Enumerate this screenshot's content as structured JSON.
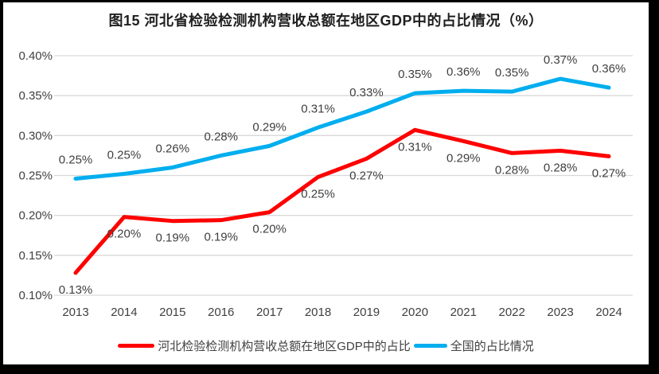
{
  "colors": {
    "frame": "#000000",
    "background": "#FFFFFF",
    "grid": "#D9D9D9",
    "axis_text": "#404040",
    "label_text": "#3F3F3F",
    "title_text": "#1F1F1F",
    "hebei_red": "#FE0000",
    "national_blue": "#00AEEF"
  },
  "chart_data": {
    "type": "line",
    "title": "图15 河北省检验检测机构营收总额在地区GDP中的占比情况（%）",
    "xlabel": "",
    "ylabel": "",
    "categories": [
      "2013",
      "2014",
      "2015",
      "2016",
      "2017",
      "2018",
      "2019",
      "2020",
      "2021",
      "2022",
      "2023",
      "2024"
    ],
    "series": [
      {
        "id": "hebei",
        "name": "河北检验检测机构营收总额在地区GDP中的占比",
        "color": "#FE0000",
        "values": [
          0.128,
          0.198,
          0.193,
          0.194,
          0.204,
          0.248,
          0.271,
          0.307,
          0.293,
          0.278,
          0.281,
          0.274
        ],
        "labels": [
          "0.13%",
          "0.20%",
          "0.19%",
          "0.19%",
          "0.20%",
          "0.25%",
          "0.27%",
          "0.31%",
          "0.29%",
          "0.28%",
          "0.28%",
          "0.27%"
        ],
        "label_position": "below"
      },
      {
        "id": "national",
        "name": "全国的占比情况",
        "color": "#00AEEF",
        "values": [
          0.246,
          0.252,
          0.26,
          0.275,
          0.287,
          0.31,
          0.33,
          0.353,
          0.356,
          0.355,
          0.371,
          0.36
        ],
        "labels": [
          "0.25%",
          "0.25%",
          "0.26%",
          "0.28%",
          "0.29%",
          "0.31%",
          "0.33%",
          "0.35%",
          "0.36%",
          "0.35%",
          "0.37%",
          "0.36%"
        ],
        "label_position": "above"
      }
    ],
    "ylim": [
      0.1,
      0.4
    ],
    "yticks": [
      "0.40%",
      "0.35%",
      "0.30%",
      "0.25%",
      "0.20%",
      "0.15%",
      "0.10%"
    ],
    "grid": true,
    "legend_position": "bottom"
  }
}
